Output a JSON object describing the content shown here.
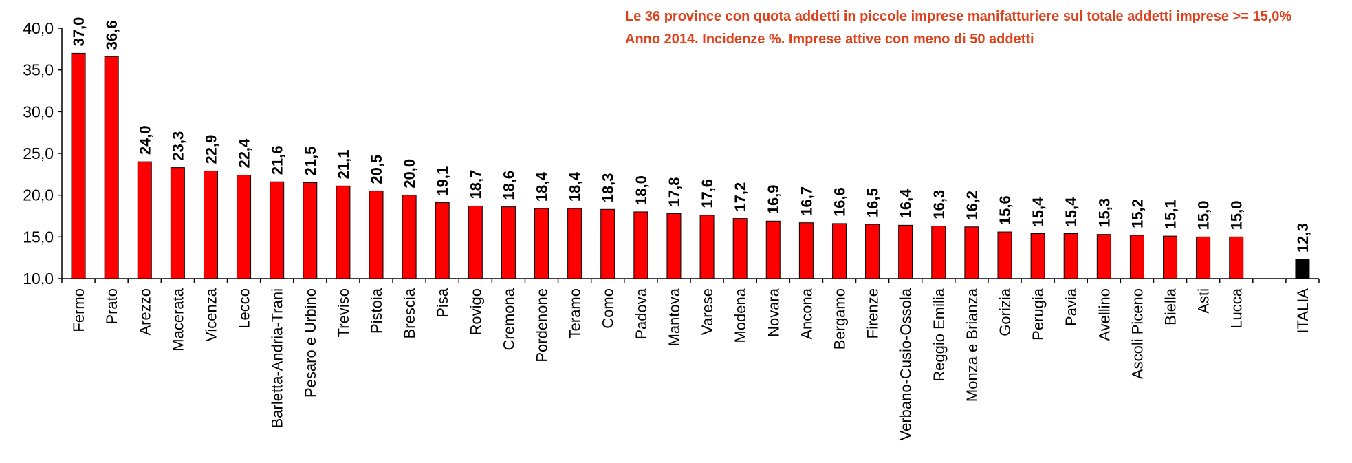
{
  "chart_data": {
    "type": "bar",
    "title": "Le 36 province con quota addetti in piccole imprese manifatturiere sul totale addetti imprese >= 15,0%",
    "subtitle": "Anno 2014. Incidenze %. Imprese attive con meno di 50 addetti",
    "categories": [
      "Fermo",
      "Prato",
      "Arezzo",
      "Macerata",
      "Vicenza",
      "Lecco",
      "Barletta-Andria-Trani",
      "Pesaro e Urbino",
      "Treviso",
      "Pistoia",
      "Brescia",
      "Pisa",
      "Rovigo",
      "Cremona",
      "Pordenone",
      "Teramo",
      "Como",
      "Padova",
      "Mantova",
      "Varese",
      "Modena",
      "Novara",
      "Ancona",
      "Bergamo",
      "Firenze",
      "Verbano-Cusio-Ossola",
      "Reggio Emilia",
      "Monza e Brianza",
      "Gorizia",
      "Perugia",
      "Pavia",
      "Avellino",
      "Ascoli Piceno",
      "Biella",
      "Asti",
      "Lucca",
      null,
      "ITALIA"
    ],
    "values": [
      37.0,
      36.6,
      24.0,
      23.3,
      22.9,
      22.4,
      21.6,
      21.5,
      21.1,
      20.5,
      20.0,
      19.1,
      18.7,
      18.6,
      18.4,
      18.4,
      18.3,
      18.0,
      17.8,
      17.6,
      17.2,
      16.9,
      16.7,
      16.6,
      16.5,
      16.4,
      16.3,
      16.2,
      15.6,
      15.4,
      15.4,
      15.3,
      15.2,
      15.1,
      15.0,
      15.0,
      null,
      12.3
    ],
    "value_labels": [
      "37,0",
      "36,6",
      "24,0",
      "23,3",
      "22,9",
      "22,4",
      "21,6",
      "21,5",
      "21,1",
      "20,5",
      "20,0",
      "19,1",
      "18,7",
      "18,6",
      "18,4",
      "18,4",
      "18,3",
      "18,0",
      "17,8",
      "17,6",
      "17,2",
      "16,9",
      "16,7",
      "16,6",
      "16,5",
      "16,4",
      "16,3",
      "16,2",
      "15,6",
      "15,4",
      "15,4",
      "15,3",
      "15,2",
      "15,1",
      "15,0",
      "15,0",
      null,
      "12,3"
    ],
    "colors": [
      "#ff0000",
      "#ff0000",
      "#ff0000",
      "#ff0000",
      "#ff0000",
      "#ff0000",
      "#ff0000",
      "#ff0000",
      "#ff0000",
      "#ff0000",
      "#ff0000",
      "#ff0000",
      "#ff0000",
      "#ff0000",
      "#ff0000",
      "#ff0000",
      "#ff0000",
      "#ff0000",
      "#ff0000",
      "#ff0000",
      "#ff0000",
      "#ff0000",
      "#ff0000",
      "#ff0000",
      "#ff0000",
      "#ff0000",
      "#ff0000",
      "#ff0000",
      "#ff0000",
      "#ff0000",
      "#ff0000",
      "#ff0000",
      "#ff0000",
      "#ff0000",
      "#ff0000",
      "#ff0000",
      null,
      "#000000"
    ],
    "ylim": [
      10,
      40
    ],
    "yticks": [
      {
        "value": 10,
        "label": "10,0"
      },
      {
        "value": 15,
        "label": "15,0"
      },
      {
        "value": 20,
        "label": "20,0"
      },
      {
        "value": 25,
        "label": "25,0"
      },
      {
        "value": 30,
        "label": "30,0"
      },
      {
        "value": 35,
        "label": "35,0"
      },
      {
        "value": 40,
        "label": "40,0"
      }
    ],
    "grid": false
  }
}
